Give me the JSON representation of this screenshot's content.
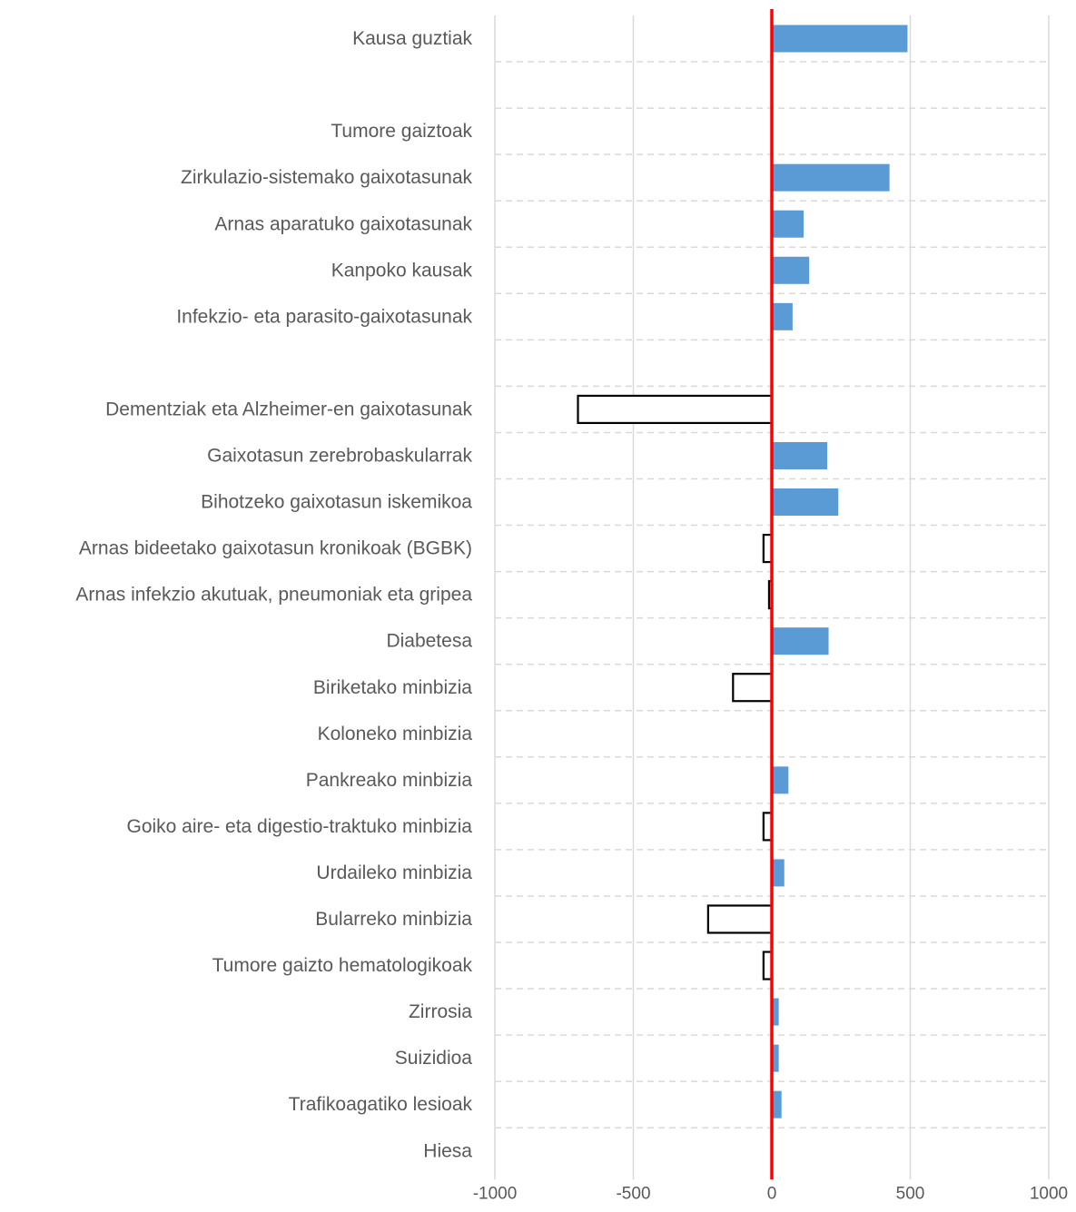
{
  "chart_data": {
    "type": "bar",
    "orientation": "horizontal",
    "categories": [
      "Kausa guztiak",
      "",
      "Tumore gaiztoak",
      "Zirkulazio-sistemako gaixotasunak",
      "Arnas aparatuko gaixotasunak",
      "Kanpoko kausak",
      "Infekzio- eta parasito-gaixotasunak",
      "",
      "Dementziak eta Alzheimer-en gaixotasunak",
      "Gaixotasun zerebrobaskularrak",
      "Bihotzeko gaixotasun iskemikoa",
      "Arnas bideetako gaixotasun kronikoak (BGBK)",
      "Arnas infekzio akutuak, pneumoniak eta gripea",
      "Diabetesa",
      "Biriketako minbizia",
      "Koloneko minbizia",
      "Pankreako minbizia",
      "Goiko aire- eta digestio-traktuko minbizia",
      "Urdaileko minbizia",
      "Bularreko minbizia",
      "Tumore gaizto hematologikoak",
      "Zirrosia",
      "Suizidioa",
      "Trafikoagatiko lesioak",
      "Hiesa"
    ],
    "series": [
      {
        "values": [
          490,
          null,
          null,
          425,
          115,
          135,
          75,
          null,
          null,
          200,
          240,
          null,
          null,
          205,
          null,
          null,
          60,
          null,
          45,
          null,
          null,
          25,
          25,
          35,
          null
        ],
        "color": "#5B9BD5",
        "style": "filled"
      },
      {
        "values": [
          null,
          null,
          null,
          null,
          null,
          null,
          null,
          null,
          -700,
          null,
          null,
          -30,
          -10,
          null,
          -140,
          null,
          null,
          -30,
          null,
          -230,
          -30,
          null,
          null,
          null,
          null
        ],
        "color": "#000000",
        "style": "outline"
      }
    ],
    "xlim": [
      -1000,
      1000
    ],
    "xticks": [
      -1000,
      -500,
      0,
      500,
      1000
    ],
    "xtick_labels": [
      "-1000",
      "-500",
      "0",
      "500",
      "1000"
    ],
    "reference_line": {
      "x": 0,
      "color": "#FF0000"
    },
    "grid": true,
    "grid_color": "#D9D9D9",
    "legend": "none"
  }
}
